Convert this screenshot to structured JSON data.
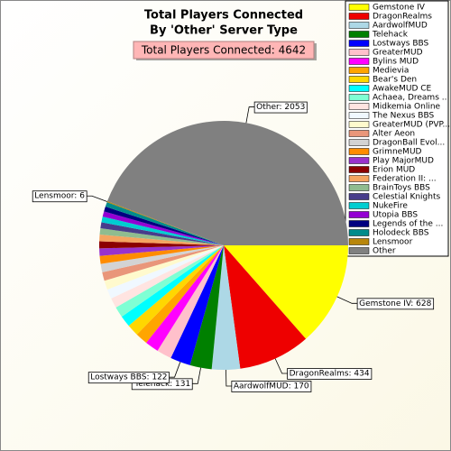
{
  "chart_data": {
    "type": "pie",
    "title": "Total Players Connected",
    "subtitle": "By 'Other' Server Type",
    "total_label": "Total Players Connected: 4642",
    "legend": "top-right",
    "categories": [
      "Gemstone IV",
      "DragonRealms",
      "AardwolfMUD",
      "Telehack",
      "Lostways BBS",
      "GreaterMUD",
      "Bylins MUD",
      "Medievia",
      "Bear's Den",
      "AwakeMUD CE",
      "Achaea, Dreams ...",
      "Midkemia Online",
      "The Nexus BBS",
      "GreaterMUD (PVP...",
      "Alter Aeon",
      "DragonBall Evol...",
      "GrimneMUD",
      "Play MajorMUD",
      "Erion MUD",
      "Federation II: ...",
      "BrainToys BBS",
      "Celestial Knights",
      "NukeFire",
      "Utopia BBS",
      "Legends of the ...",
      "Holodeck BBS",
      "Lensmoor",
      "Other"
    ],
    "values": [
      628,
      434,
      170,
      131,
      122,
      90,
      82,
      74,
      71,
      68,
      65,
      60,
      58,
      55,
      52,
      50,
      48,
      45,
      42,
      40,
      38,
      36,
      34,
      32,
      30,
      28,
      6,
      2053
    ],
    "value_labels": [
      "Gemstone IV: 628",
      "DragonRealms: 434",
      "AardwolfMUD: 170",
      "Telehack: 131",
      "Lostways BBS: 122",
      null,
      null,
      null,
      null,
      null,
      null,
      null,
      null,
      null,
      null,
      null,
      null,
      null,
      null,
      null,
      null,
      null,
      null,
      null,
      null,
      null,
      "Lensmoor: 6",
      "Other: 2053"
    ],
    "colors": [
      "#ffff00",
      "#ee0000",
      "#add8e6",
      "#008000",
      "#0000ff",
      "#ffc0cb",
      "#ff00ff",
      "#ffa500",
      "#ffd700",
      "#00ffff",
      "#7fffd4",
      "#ffe4e1",
      "#f0f8ff",
      "#fffacd",
      "#e9967a",
      "#d3d3d3",
      "#ff8c00",
      "#9932cc",
      "#8b0000",
      "#f4a460",
      "#8fbc8f",
      "#483d8b",
      "#00ced1",
      "#9400d3",
      "#000080",
      "#008b8b",
      "#b8860b",
      "#808080"
    ]
  }
}
